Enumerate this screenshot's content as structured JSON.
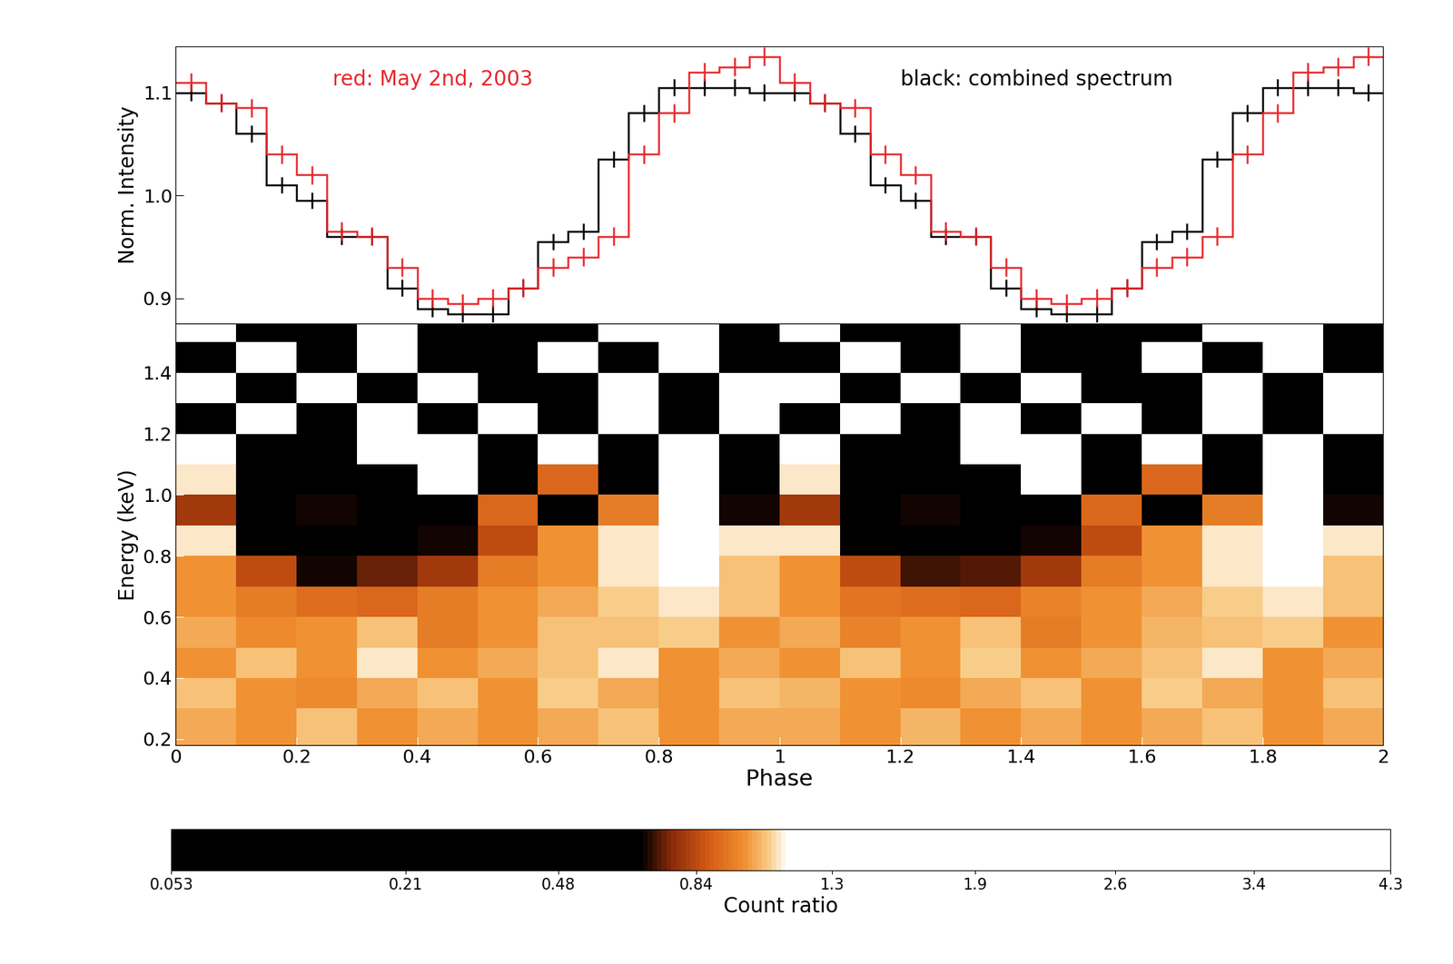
{
  "chart_data": [
    {
      "type": "step",
      "ylabel": "Norm. Intensity",
      "bins": [
        0,
        0.05,
        0.1,
        0.15,
        0.2,
        0.25,
        0.3,
        0.35,
        0.4,
        0.45,
        0.5,
        0.55,
        0.6,
        0.65,
        0.7,
        0.75,
        0.8,
        0.85,
        0.9,
        0.95,
        1,
        1.05,
        1.1,
        1.15,
        1.2,
        1.25,
        1.3,
        1.35,
        1.4,
        1.45,
        1.5,
        1.55,
        1.6,
        1.65,
        1.7,
        1.75,
        1.8,
        1.85,
        1.9,
        1.95,
        2
      ],
      "xlim": [
        0,
        2
      ],
      "ylim": [
        0.875,
        1.145
      ],
      "yticks": [
        0.9,
        1.0,
        1.1
      ],
      "tick_labels": "y",
      "series": [
        {
          "name": "black: combined spectrum",
          "color": "#000000",
          "values": [
            1.1,
            1.09,
            1.06,
            1.01,
            0.995,
            0.96,
            0.96,
            0.91,
            0.89,
            0.885,
            0.885,
            0.91,
            0.955,
            0.965,
            1.035,
            1.08,
            1.105,
            1.105,
            1.105,
            1.1,
            1.1,
            1.09,
            1.06,
            1.01,
            0.995,
            0.96,
            0.96,
            0.91,
            0.89,
            0.885,
            0.885,
            0.91,
            0.955,
            0.965,
            1.035,
            1.08,
            1.105,
            1.105,
            1.105,
            1.1
          ],
          "errors": [
            0.008,
            0.008,
            0.008,
            0.008,
            0.008,
            0.008,
            0.008,
            0.008,
            0.008,
            0.008,
            0.008,
            0.008,
            0.008,
            0.008,
            0.008,
            0.008,
            0.008,
            0.008,
            0.008,
            0.008,
            0.008,
            0.008,
            0.008,
            0.008,
            0.008,
            0.008,
            0.008,
            0.008,
            0.008,
            0.008,
            0.008,
            0.008,
            0.008,
            0.008,
            0.008,
            0.008,
            0.008,
            0.008,
            0.008,
            0.008
          ]
        },
        {
          "name": "red: May 2nd, 2003",
          "color": "#e8262a",
          "values": [
            1.11,
            1.09,
            1.085,
            1.04,
            1.02,
            0.965,
            0.96,
            0.93,
            0.9,
            0.895,
            0.9,
            0.91,
            0.93,
            0.94,
            0.96,
            1.04,
            1.08,
            1.12,
            1.125,
            1.135,
            1.11,
            1.09,
            1.085,
            1.04,
            1.02,
            0.965,
            0.96,
            0.93,
            0.9,
            0.895,
            0.9,
            0.91,
            0.93,
            0.94,
            0.96,
            1.04,
            1.08,
            1.12,
            1.125,
            1.135
          ],
          "errors": [
            0.009,
            0.009,
            0.009,
            0.009,
            0.009,
            0.009,
            0.009,
            0.009,
            0.009,
            0.009,
            0.009,
            0.009,
            0.009,
            0.009,
            0.009,
            0.009,
            0.009,
            0.009,
            0.009,
            0.009,
            0.009,
            0.009,
            0.009,
            0.009,
            0.009,
            0.009,
            0.009,
            0.009,
            0.009,
            0.009,
            0.009,
            0.009,
            0.009,
            0.009,
            0.009,
            0.009,
            0.009,
            0.009,
            0.009,
            0.009
          ]
        }
      ]
    },
    {
      "type": "heatmap",
      "xlabel": "Phase",
      "ylabel": "Energy (keV)",
      "x_edges": [
        0,
        0.1,
        0.2,
        0.3,
        0.4,
        0.5,
        0.6,
        0.7,
        0.8,
        0.9,
        1,
        1.1,
        1.2,
        1.3,
        1.4,
        1.5,
        1.6,
        1.7,
        1.8,
        1.9,
        2
      ],
      "y_edges": [
        0.18,
        0.3,
        0.4,
        0.5,
        0.6,
        0.7,
        0.8,
        0.9,
        1.0,
        1.1,
        1.2,
        1.3,
        1.4,
        1.5,
        1.56
      ],
      "xlim": [
        0,
        2
      ],
      "ylim": [
        0.18,
        1.56
      ],
      "xticks": [
        0,
        0.2,
        0.4,
        0.6,
        0.8,
        1,
        1.2,
        1.4,
        1.6,
        1.8,
        2
      ],
      "yticks": [
        0.2,
        0.4,
        0.6,
        0.8,
        1.0,
        1.2,
        1.4
      ],
      "cells": [
        [
          1.02,
          1.0,
          1.05,
          1.0,
          1.03,
          1.0,
          1.02,
          1.05,
          1.0,
          1.02,
          1.03,
          1.0,
          1.04,
          1.0,
          1.02,
          1.0,
          1.03,
          1.05,
          1.0,
          1.02
        ],
        [
          1.05,
          1.0,
          0.98,
          1.02,
          1.05,
          1.0,
          1.08,
          1.03,
          1.0,
          1.05,
          1.04,
          1.0,
          0.98,
          1.03,
          1.05,
          1.0,
          1.07,
          1.03,
          1.0,
          1.05
        ],
        [
          1.0,
          1.05,
          1.0,
          1.1,
          1.0,
          1.02,
          1.05,
          1.1,
          1.0,
          1.02,
          1.0,
          1.05,
          1.0,
          1.08,
          1.0,
          1.02,
          1.05,
          1.1,
          1.0,
          1.03
        ],
        [
          1.02,
          0.98,
          1.0,
          1.05,
          0.95,
          1.0,
          1.05,
          1.05,
          1.08,
          1.0,
          1.02,
          0.97,
          1.0,
          1.05,
          0.95,
          1.0,
          1.04,
          1.05,
          1.08,
          1.0
        ],
        [
          1.0,
          0.95,
          0.92,
          0.9,
          0.95,
          1.0,
          1.02,
          1.08,
          1.1,
          1.05,
          1.0,
          0.94,
          0.92,
          0.9,
          0.96,
          1.0,
          1.02,
          1.08,
          1.1,
          1.05
        ],
        [
          1.0,
          0.85,
          0.7,
          0.75,
          0.8,
          0.95,
          1.0,
          1.1,
          1.15,
          1.05,
          1.0,
          0.85,
          0.72,
          0.74,
          0.8,
          0.95,
          1.0,
          1.1,
          1.15,
          1.05
        ],
        [
          1.1,
          0.6,
          0.5,
          0.6,
          0.7,
          0.85,
          1.0,
          1.1,
          1.2,
          1.1,
          1.1,
          0.62,
          0.5,
          0.6,
          0.7,
          0.85,
          1.0,
          1.1,
          1.2,
          1.1
        ],
        [
          0.8,
          0.5,
          0.7,
          0.4,
          0.6,
          0.9,
          0.5,
          0.95,
          1.2,
          0.7,
          0.8,
          0.5,
          0.7,
          0.4,
          0.6,
          0.9,
          0.5,
          0.95,
          1.2,
          0.7
        ],
        [
          1.1,
          0.3,
          0.6,
          0.2,
          1.3,
          0.4,
          0.9,
          0.3,
          1.5,
          0.6,
          1.1,
          0.3,
          0.6,
          0.2,
          1.3,
          0.4,
          0.9,
          0.3,
          1.5,
          0.6
        ],
        [
          1.6,
          0.4,
          0.3,
          1.2,
          2.0,
          0.5,
          1.5,
          0.6,
          1.8,
          0.3,
          1.6,
          0.4,
          0.3,
          1.2,
          2.0,
          0.5,
          1.5,
          0.6,
          1.8,
          0.3
        ],
        [
          0.5,
          2.2,
          0.2,
          1.8,
          0.6,
          2.5,
          0.4,
          1.9,
          0.3,
          2.0,
          0.5,
          2.2,
          0.2,
          1.8,
          0.6,
          2.5,
          0.4,
          1.9,
          0.3,
          2.0
        ],
        [
          2.5,
          0.3,
          1.6,
          0.2,
          2.8,
          0.4,
          0.3,
          2.2,
          0.5,
          1.8,
          2.5,
          0.3,
          1.6,
          0.2,
          2.8,
          0.4,
          0.3,
          2.2,
          0.5,
          1.8
        ],
        [
          0.2,
          2.6,
          0.3,
          2.4,
          0.2,
          0.5,
          2.9,
          0.3,
          3.0,
          0.4,
          0.2,
          2.6,
          0.3,
          2.4,
          0.2,
          0.5,
          2.9,
          0.3,
          3.0,
          0.4
        ],
        [
          3.0,
          0.1,
          0.2,
          2.0,
          0.1,
          0.4,
          0.2,
          2.5,
          3.5,
          0.2,
          3.0,
          0.1,
          0.2,
          2.0,
          0.1,
          0.4,
          0.2,
          2.5,
          3.5,
          0.2
        ]
      ],
      "colorbar": {
        "label": "Count ratio",
        "lim": [
          0.053,
          4.3
        ],
        "ticks": [
          0.053,
          0.21,
          0.48,
          0.84,
          1.3,
          1.9,
          2.6,
          3.4,
          4.3
        ]
      }
    }
  ]
}
